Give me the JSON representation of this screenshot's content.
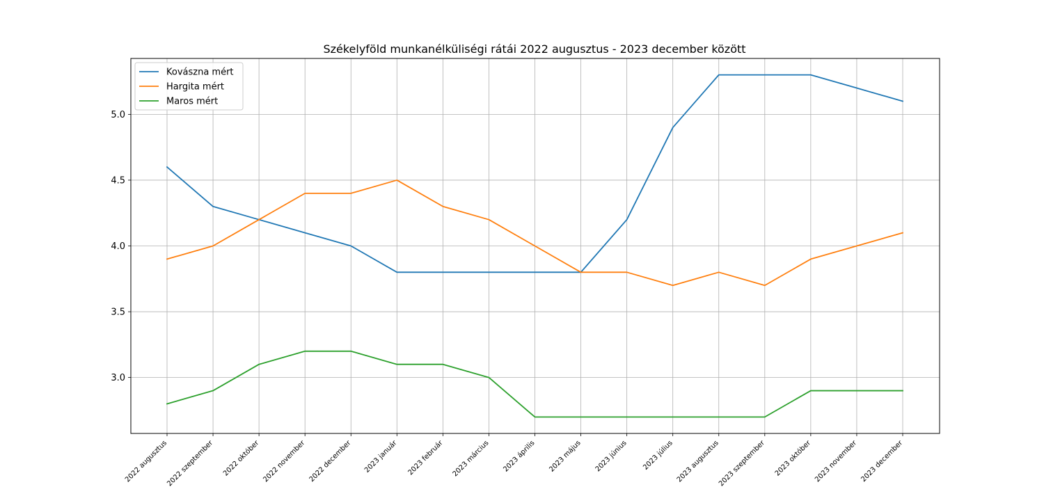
{
  "chart_data": {
    "type": "line",
    "title": "Székelyföld munkanélküliségi rátái 2022 augusztus - 2023 december között",
    "xlabel": "",
    "ylabel": "",
    "categories": [
      "2022 augusztus",
      "2022 szeptember",
      "2022 október",
      "2022 november",
      "2022 december",
      "2023 január",
      "2023 február",
      "2023 március",
      "2023 április",
      "2023 május",
      "2023 június",
      "2023 július",
      "2023 augusztus",
      "2023 szeptember",
      "2023 október",
      "2023 november",
      "2023 december"
    ],
    "series": [
      {
        "name": "Kovászna mért",
        "color": "#1f77b4",
        "values": [
          4.6,
          4.3,
          4.2,
          4.1,
          4.0,
          3.8,
          3.8,
          3.8,
          3.8,
          3.8,
          4.2,
          4.9,
          5.3,
          5.3,
          5.3,
          5.2,
          5.1
        ]
      },
      {
        "name": "Hargita mért",
        "color": "#ff7f0e",
        "values": [
          3.9,
          4.0,
          4.2,
          4.4,
          4.4,
          4.5,
          4.3,
          4.2,
          4.0,
          3.8,
          3.8,
          3.7,
          3.8,
          3.7,
          3.9,
          4.0,
          4.1
        ]
      },
      {
        "name": "Maros mért",
        "color": "#2ca02c",
        "values": [
          2.8,
          2.9,
          3.1,
          3.2,
          3.2,
          3.1,
          3.1,
          3.0,
          2.7,
          2.7,
          2.7,
          2.7,
          2.7,
          2.7,
          2.9,
          2.9,
          2.9
        ]
      }
    ],
    "ylim": [
      2.575,
      5.425
    ],
    "yticks": [
      3.0,
      3.5,
      4.0,
      4.5,
      5.0
    ],
    "ytick_labels": [
      "3.0",
      "3.5",
      "4.0",
      "4.5",
      "5.0"
    ],
    "grid": true,
    "legend_position": "upper-left"
  }
}
